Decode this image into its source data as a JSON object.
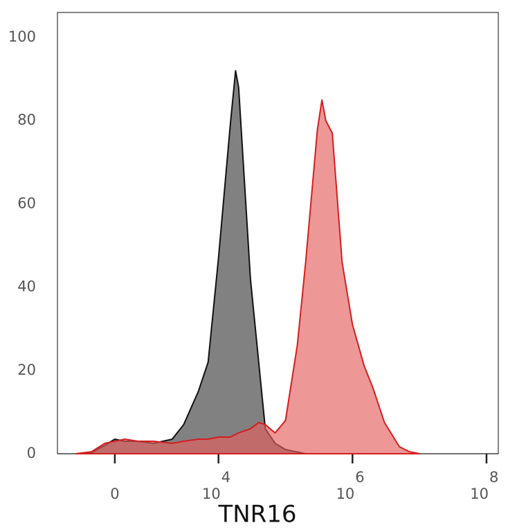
{
  "chart_data": {
    "type": "area",
    "x_label": "TNR16",
    "xscale": "biexponential",
    "xlim": [
      -2000,
      150000000
    ],
    "xticks": [
      0,
      {
        "value": 10000,
        "label": "10",
        "exponent": "4"
      },
      {
        "value": 1000000,
        "label": "10",
        "exponent": "6"
      },
      {
        "value": 100000000,
        "label": "10",
        "exponent": "8"
      }
    ],
    "ylim": [
      0,
      106
    ],
    "yticks": [
      0,
      20,
      40,
      60,
      80,
      100
    ],
    "grid": false,
    "series": [
      {
        "color": "#111111",
        "fill": "#7a7a7a",
        "x": [
          -1000,
          -500,
          -200,
          0,
          200,
          500,
          1000,
          2000,
          3000,
          5000,
          7000,
          10000,
          15000,
          18000,
          20000,
          30000,
          50000,
          70000,
          100000,
          200000
        ],
        "values": [
          0,
          0.3,
          2,
          3.5,
          3,
          3,
          2.5,
          3.5,
          7,
          15,
          22,
          47,
          79,
          92,
          88,
          42,
          6,
          2.5,
          1,
          0
        ]
      },
      {
        "color": "#d41e1e",
        "fill": "#e35f5f",
        "x": [
          -1000,
          -500,
          -200,
          0,
          200,
          500,
          1000,
          2000,
          3000,
          5000,
          7000,
          10000,
          15000,
          20000,
          30000,
          40000,
          50000,
          70000,
          100000,
          150000,
          200000,
          300000,
          350000,
          400000,
          500000,
          700000,
          1000000,
          1500000,
          2000000,
          3000000,
          5000000,
          7000000,
          10000000
        ],
        "values": [
          0,
          0.5,
          2.5,
          3,
          3.5,
          3,
          3,
          2.5,
          3,
          3.5,
          3.5,
          4,
          4,
          5,
          6,
          7.5,
          7,
          5,
          8,
          26,
          46,
          78,
          85,
          80,
          77,
          46,
          31,
          21,
          16,
          7.5,
          1.7,
          0.5,
          0
        ]
      }
    ]
  }
}
